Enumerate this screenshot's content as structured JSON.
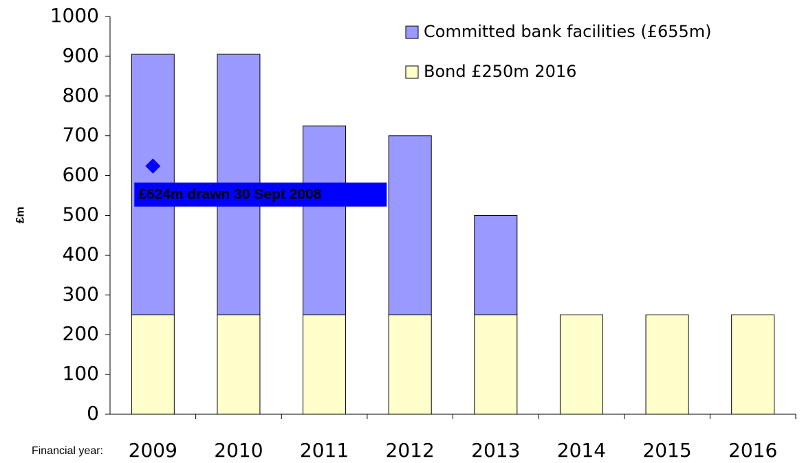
{
  "chart_data": {
    "type": "stacked_bar",
    "categories": [
      "2009",
      "2010",
      "2011",
      "2012",
      "2013",
      "2014",
      "2015",
      "2016"
    ],
    "series": [
      {
        "name": "Bond £250m 2016",
        "color": "#ffffcc",
        "values": [
          250,
          250,
          250,
          250,
          250,
          250,
          250,
          250
        ]
      },
      {
        "name": "Committed bank facilities (£655m)",
        "color": "#9999ff",
        "values": [
          655,
          655,
          475,
          450,
          250,
          0,
          0,
          0
        ]
      }
    ],
    "ylabel": "£m",
    "xlabel": "Financial year:",
    "ylim": [
      0,
      1000
    ],
    "yticks": [
      0,
      100,
      200,
      300,
      400,
      500,
      600,
      700,
      800,
      900,
      1000
    ],
    "annotations": [
      {
        "text": "£624m drawn 30 Sept 2008",
        "x": "2009",
        "value": 624,
        "color": "#0000ff"
      }
    ],
    "legend": "top-right"
  }
}
